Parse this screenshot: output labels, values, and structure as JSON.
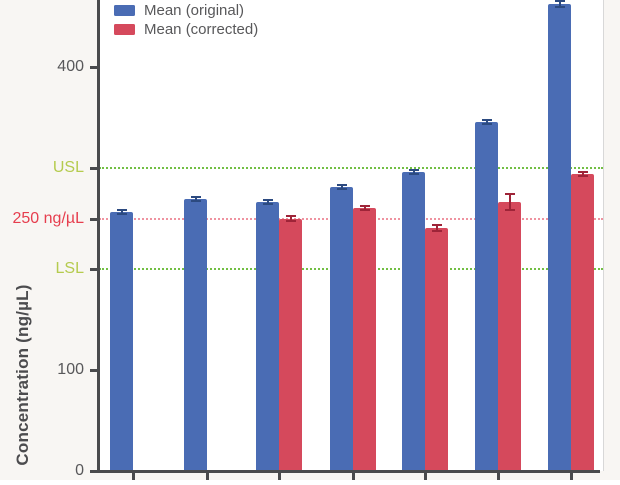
{
  "chart_data": {
    "type": "bar",
    "title": "",
    "ylabel": "Concentration (ng/µL)",
    "group_count": 7,
    "x_tick_labels_visible": false,
    "ylim": [
      0,
      465
    ],
    "grid": false,
    "legend_position": "top-left-inside",
    "series": [
      {
        "name": "Mean (original)",
        "color": "#4a6cb4",
        "error_color": "#2c4a80",
        "values": [
          256,
          269,
          266,
          281,
          296,
          346,
          462
        ],
        "errors": [
          2,
          2,
          2,
          2,
          2,
          2,
          3
        ]
      },
      {
        "name": "Mean (corrected)",
        "color": "#d5495c",
        "error_color": "#9e2438",
        "values": [
          null,
          null,
          250,
          260,
          241,
          266,
          294
        ],
        "errors": [
          null,
          null,
          2,
          2,
          3,
          8,
          2
        ]
      }
    ],
    "reference_lines": [
      {
        "id": "usl",
        "label": "USL",
        "value": 300,
        "line_color": "#72bf44"
      },
      {
        "id": "target",
        "label": "250 ng/µL",
        "value": 250,
        "line_color": "#ef93a0"
      },
      {
        "id": "lsl",
        "label": "LSL",
        "value": 200,
        "line_color": "#72bf44"
      }
    ],
    "y_ticks": [
      {
        "value": 400,
        "label": "400",
        "color": "#58585a"
      },
      {
        "value": 300,
        "label": "USL",
        "color": "#b5cb4e"
      },
      {
        "value": 250,
        "label": "250 ng/µL",
        "color": "#e63e4e"
      },
      {
        "value": 200,
        "label": "LSL",
        "color": "#b5cb4e"
      },
      {
        "value": 100,
        "label": "100",
        "color": "#58585a"
      },
      {
        "value": 0,
        "label": "0",
        "color": "#58585a"
      }
    ]
  }
}
